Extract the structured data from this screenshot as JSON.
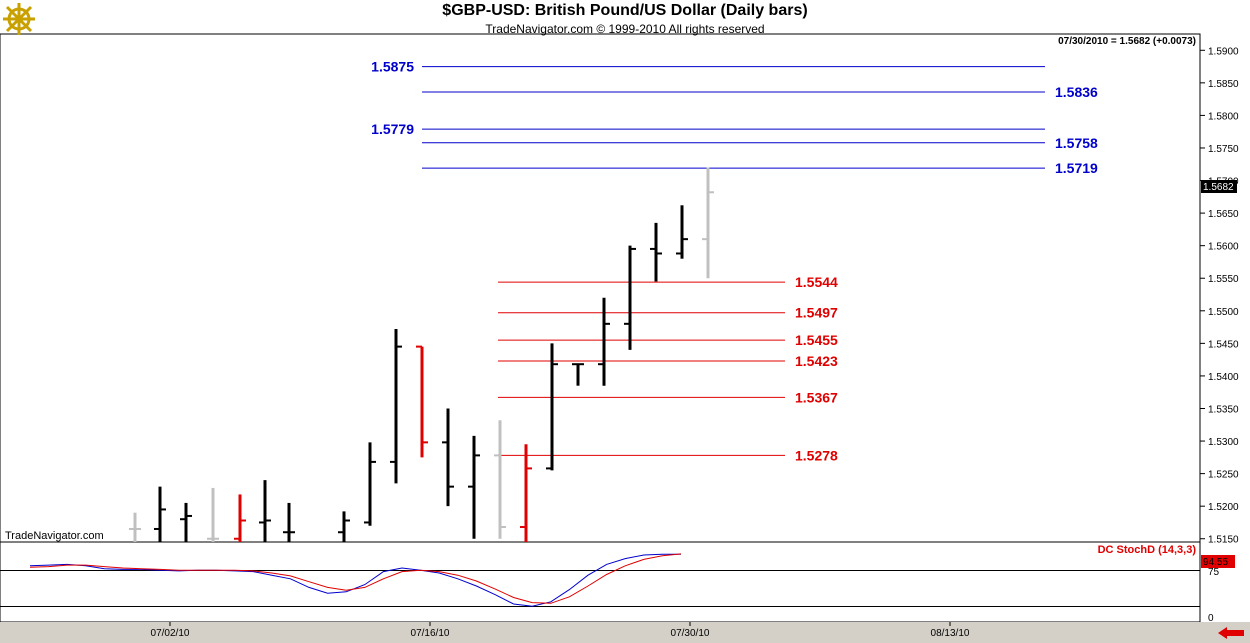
{
  "header": {
    "title": "$GBP-USD:  British Pound/US Dollar  (Daily bars)",
    "subtitle": "TradeNavigator.com © 1999-2010 All rights reserved",
    "quote": "07/30/2010 = 1.5682 (+0.0073)",
    "watermark": "TradeNavigator.com",
    "logo_icon": "ship-wheel-icon"
  },
  "colors": {
    "up_bar": "#000000",
    "down_bar": "#e00000",
    "current_bar": "#c0c0c0",
    "resistance": "#0000cc",
    "support": "#e00000",
    "stoch_k": "#0000cc",
    "stoch_d": "#e00000"
  },
  "indicator": {
    "label": "DC StochD (14,3,3)",
    "current_value_label": "94.55",
    "axis_ticks": [
      "75",
      "0"
    ]
  },
  "chart_data": {
    "type": "ohlc",
    "title": "$GBP-USD:  British Pound/US Dollar  (Daily bars)",
    "current_price_label": "1.5682",
    "y_ticks": [
      "1.5900",
      "1.5850",
      "1.5800",
      "1.5750",
      "1.5700",
      "1.5650",
      "1.5600",
      "1.5550",
      "1.5500",
      "1.5450",
      "1.5400",
      "1.5350",
      "1.5300",
      "1.5250",
      "1.5200",
      "1.5150"
    ],
    "ylim": [
      1.5145,
      1.5925
    ],
    "x_ticks": [
      "07/02/10",
      "07/16/10",
      "07/30/10",
      "08/13/10"
    ],
    "bars": [
      {
        "o": 1.5165,
        "h": 1.519,
        "l": 1.5145,
        "c": 1.5165,
        "kind": "current"
      },
      {
        "o": 1.5165,
        "h": 1.523,
        "l": 1.5145,
        "c": 1.5195,
        "kind": "up"
      },
      {
        "o": 1.518,
        "h": 1.5205,
        "l": 1.5145,
        "c": 1.5185,
        "kind": "up"
      },
      {
        "o": 1.515,
        "h": 1.5228,
        "l": 1.5145,
        "c": 1.515,
        "kind": "current"
      },
      {
        "o": 1.515,
        "h": 1.5218,
        "l": 1.5145,
        "c": 1.5178,
        "kind": "down"
      },
      {
        "o": 1.5175,
        "h": 1.524,
        "l": 1.5145,
        "c": 1.5178,
        "kind": "up"
      },
      {
        "o": 1.516,
        "h": 1.5205,
        "l": 1.5145,
        "c": 1.516,
        "kind": "up"
      },
      {
        "o": 1.516,
        "h": 1.5192,
        "l": 1.5145,
        "c": 1.5178,
        "kind": "up"
      },
      {
        "o": 1.5175,
        "h": 1.5298,
        "l": 1.517,
        "c": 1.5268,
        "kind": "up"
      },
      {
        "o": 1.5268,
        "h": 1.5472,
        "l": 1.5235,
        "c": 1.5445,
        "kind": "up"
      },
      {
        "o": 1.5445,
        "h": 1.5445,
        "l": 1.5275,
        "c": 1.5298,
        "kind": "down"
      },
      {
        "o": 1.5298,
        "h": 1.535,
        "l": 1.52,
        "c": 1.523,
        "kind": "up"
      },
      {
        "o": 1.523,
        "h": 1.5308,
        "l": 1.515,
        "c": 1.5278,
        "kind": "up"
      },
      {
        "o": 1.5278,
        "h": 1.5332,
        "l": 1.515,
        "c": 1.5168,
        "kind": "current"
      },
      {
        "o": 1.5168,
        "h": 1.5295,
        "l": 1.5145,
        "c": 1.5258,
        "kind": "down"
      },
      {
        "o": 1.5258,
        "h": 1.545,
        "l": 1.5255,
        "c": 1.5418,
        "kind": "up"
      },
      {
        "o": 1.5418,
        "h": 1.5418,
        "l": 1.5385,
        "c": 1.5418,
        "kind": "up"
      },
      {
        "o": 1.5418,
        "h": 1.552,
        "l": 1.5385,
        "c": 1.548,
        "kind": "up"
      },
      {
        "o": 1.548,
        "h": 1.56,
        "l": 1.544,
        "c": 1.5595,
        "kind": "up"
      },
      {
        "o": 1.5595,
        "h": 1.5635,
        "l": 1.5545,
        "c": 1.5588,
        "kind": "up"
      },
      {
        "o": 1.5588,
        "h": 1.5662,
        "l": 1.558,
        "c": 1.561,
        "kind": "up"
      },
      {
        "o": 1.561,
        "h": 1.572,
        "l": 1.555,
        "c": 1.5682,
        "kind": "current"
      }
    ],
    "levels": [
      {
        "value": 1.5875,
        "label": "1.5875",
        "type": "resistance",
        "label_side": "left"
      },
      {
        "value": 1.5836,
        "label": "1.5836",
        "type": "resistance",
        "label_side": "right"
      },
      {
        "value": 1.5779,
        "label": "1.5779",
        "type": "resistance",
        "label_side": "left"
      },
      {
        "value": 1.5758,
        "label": "1.5758",
        "type": "resistance",
        "label_side": "right"
      },
      {
        "value": 1.5719,
        "label": "1.5719",
        "type": "resistance",
        "label_side": "right"
      },
      {
        "value": 1.5544,
        "label": "1.5544",
        "type": "support",
        "label_side": "right"
      },
      {
        "value": 1.5497,
        "label": "1.5497",
        "type": "support",
        "label_side": "right"
      },
      {
        "value": 1.5455,
        "label": "1.5455",
        "type": "support",
        "label_side": "right"
      },
      {
        "value": 1.5423,
        "label": "1.5423",
        "type": "support",
        "label_side": "right"
      },
      {
        "value": 1.5367,
        "label": "1.5367",
        "type": "support",
        "label_side": "right"
      },
      {
        "value": 1.5278,
        "label": "1.5278",
        "type": "support",
        "label_side": "right"
      }
    ],
    "stoch_k": [
      78,
      79,
      80,
      78,
      74,
      73,
      73,
      72,
      71,
      72,
      72,
      71,
      70,
      65,
      60,
      48,
      40,
      42,
      52,
      70,
      75,
      72,
      68,
      60,
      50,
      38,
      25,
      22,
      28,
      45,
      65,
      80,
      88,
      93,
      94,
      94
    ],
    "stoch_d": [
      76,
      77,
      79,
      79,
      77,
      75,
      74,
      73,
      72,
      72,
      72,
      72,
      71,
      68,
      64,
      56,
      48,
      44,
      48,
      60,
      70,
      72,
      70,
      65,
      57,
      46,
      34,
      27,
      26,
      35,
      50,
      66,
      78,
      87,
      92,
      94.55
    ]
  }
}
